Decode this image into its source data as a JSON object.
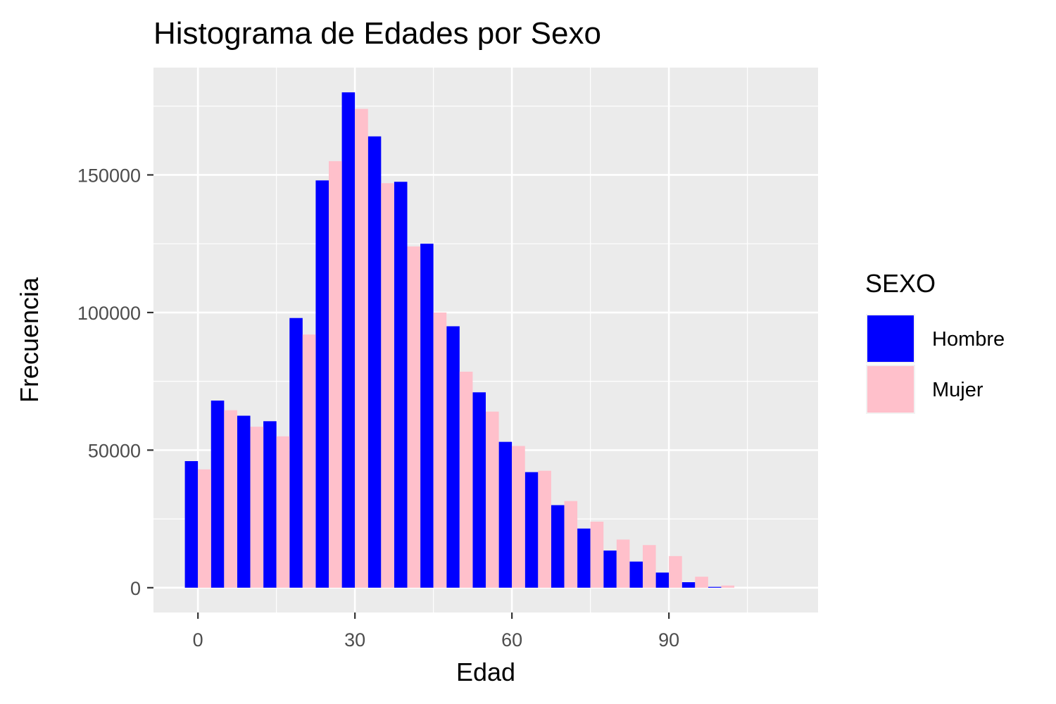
{
  "chart_data": {
    "type": "bar",
    "title": "Histograma de Edades por Sexo",
    "xlabel": "Edad",
    "ylabel": "Frecuencia",
    "x_bin_centers": [
      0,
      5,
      10,
      15,
      20,
      25,
      30,
      35,
      40,
      45,
      50,
      55,
      60,
      65,
      70,
      75,
      80,
      85,
      90,
      95,
      100,
      105
    ],
    "series": [
      {
        "name": "Hombre",
        "color": "#0000FF",
        "values": [
          46000,
          68000,
          62500,
          60500,
          98000,
          148000,
          180000,
          164000,
          147500,
          125000,
          95000,
          71000,
          53000,
          42000,
          30000,
          21500,
          13500,
          9500,
          5500,
          2000,
          300,
          0
        ]
      },
      {
        "name": "Mujer",
        "color": "#FFC0CB",
        "values": [
          43000,
          64500,
          58500,
          55000,
          92000,
          155000,
          174000,
          147000,
          124000,
          100000,
          78500,
          64000,
          51500,
          42500,
          31500,
          24000,
          17500,
          15500,
          11500,
          4000,
          800,
          0
        ]
      }
    ],
    "xlim": [
      -8.5,
      118.5
    ],
    "ylim": [
      -9000,
      189000
    ],
    "x_ticks": [
      0,
      30,
      60,
      90
    ],
    "x_tick_labels": [
      "0",
      "30",
      "60",
      "90"
    ],
    "y_ticks": [
      0,
      50000,
      100000,
      150000
    ],
    "y_tick_labels": [
      "0",
      "50000",
      "100000",
      "150000"
    ],
    "grid": true,
    "panel_background": "#EBEBEB",
    "grid_color": "#FFFFFF",
    "legend": {
      "title": "SEXO",
      "position": "right",
      "entries": [
        "Hombre",
        "Mujer"
      ]
    }
  }
}
